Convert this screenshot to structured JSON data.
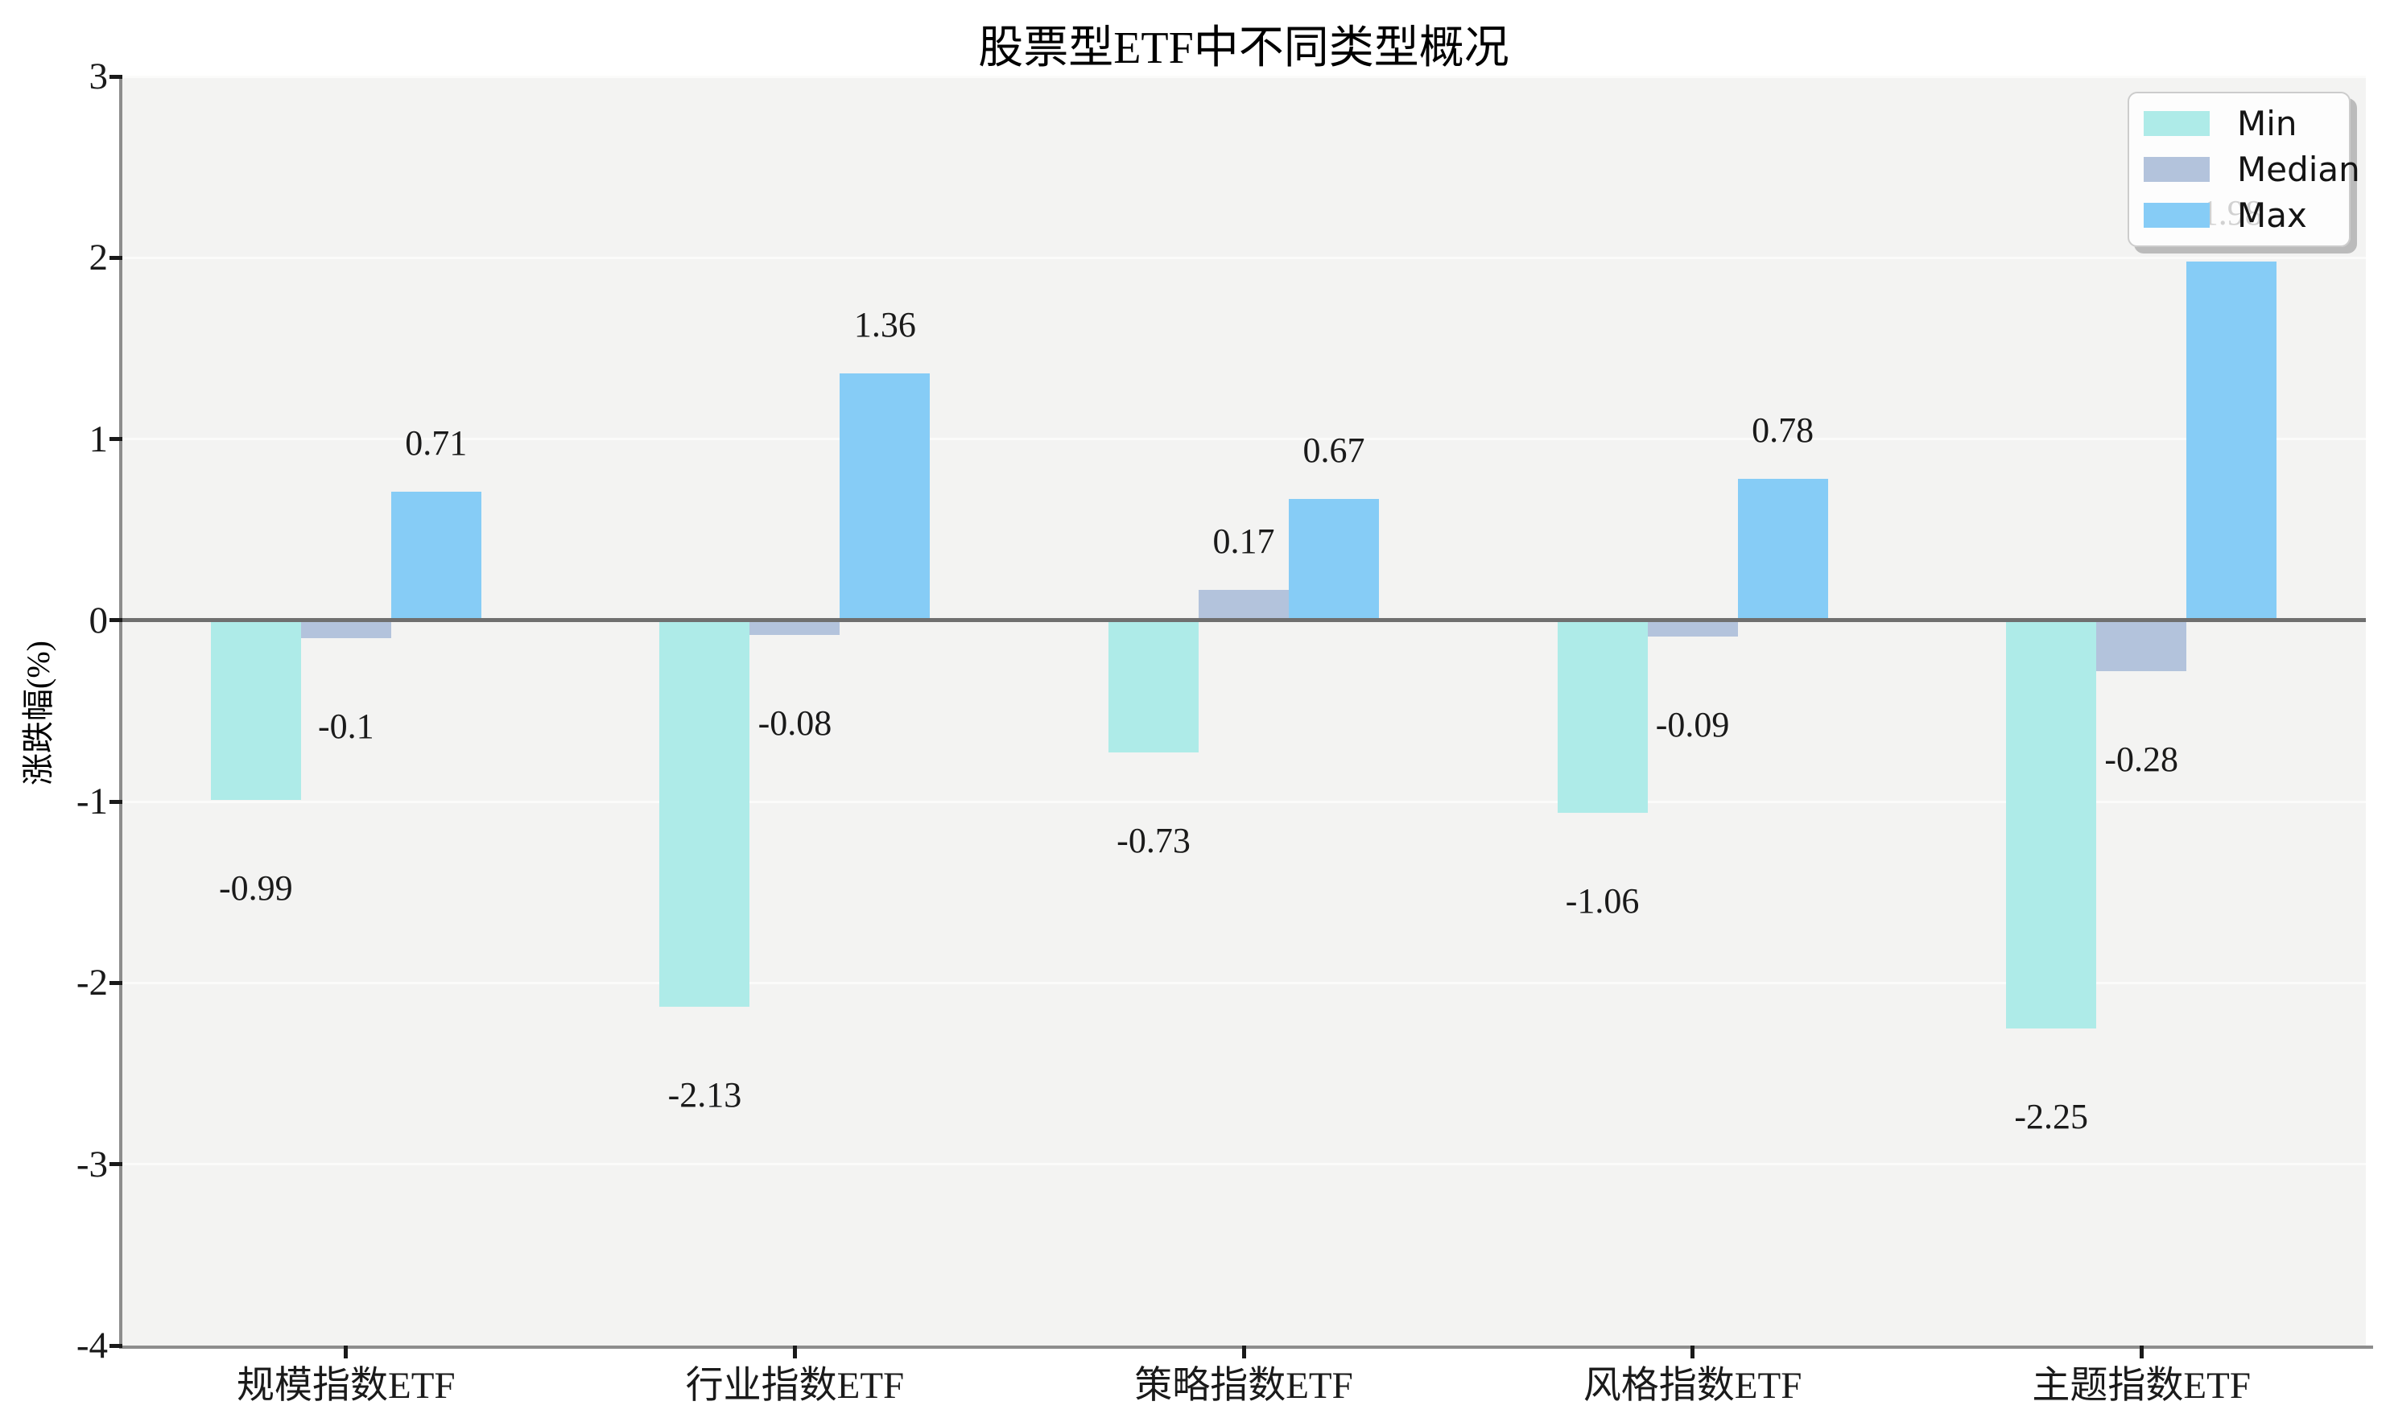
{
  "chart_data": {
    "type": "bar",
    "title": "股票型ETF中不同类型概况",
    "ylabel": "涨跌幅(%)",
    "categories": [
      "规模指数ETF",
      "行业指数ETF",
      "策略指数ETF",
      "风格指数ETF",
      "主题指数ETF"
    ],
    "series": [
      {
        "name": "Min",
        "color": "#aeebe8",
        "values": [
          -0.99,
          -2.13,
          -0.73,
          -1.06,
          -2.25
        ],
        "labels": [
          "-0.99",
          "-2.13",
          "-0.73",
          "-1.06",
          "-2.25"
        ]
      },
      {
        "name": "Median",
        "color": "#b3c3dc",
        "values": [
          -0.1,
          -0.08,
          0.17,
          -0.09,
          -0.28
        ],
        "labels": [
          "-0.1",
          "-0.08",
          "0.17",
          "-0.09",
          "-0.28"
        ]
      },
      {
        "name": "Max",
        "color": "#86ccf6",
        "values": [
          0.71,
          1.36,
          0.67,
          0.78,
          1.98
        ],
        "labels": [
          "0.71",
          "1.36",
          "0.67",
          "0.78",
          "1.98"
        ]
      }
    ],
    "ylim": [
      -4,
      3
    ],
    "yticks": [
      3,
      2,
      1,
      0,
      -1,
      -2,
      -3,
      -4
    ],
    "ytick_labels": [
      "3",
      "2",
      "1",
      "0",
      "-1",
      "-2",
      "-3",
      "-4"
    ],
    "grid": true,
    "legend_position": "top-right",
    "plot_bg_color": "#f3f3f2",
    "zero_line_color": "#6f6f6f",
    "value_labels_shown": true
  }
}
